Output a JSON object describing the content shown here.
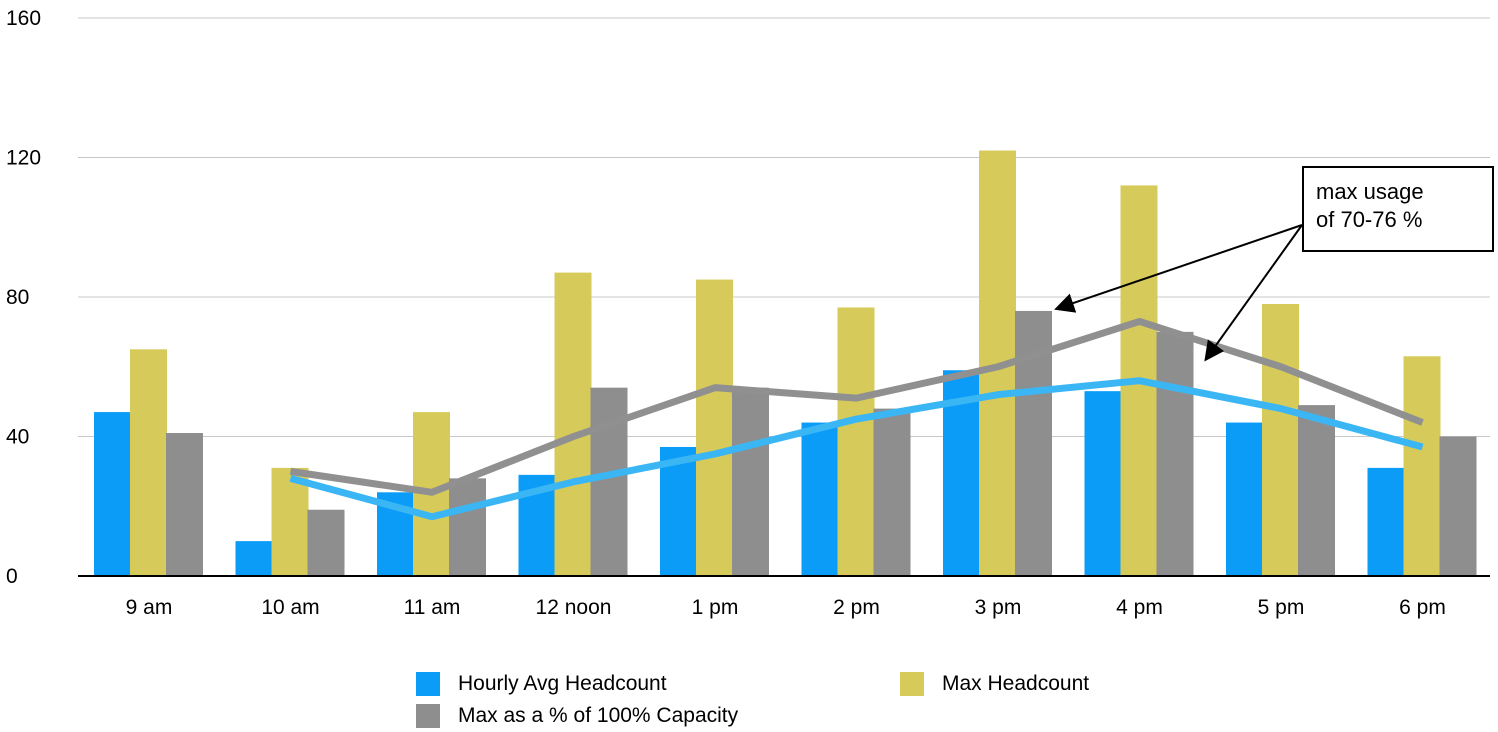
{
  "chart_data": {
    "type": "bar",
    "categories": [
      "9 am",
      "10 am",
      "11 am",
      "12 noon",
      "1 pm",
      "2 pm",
      "3 pm",
      "4 pm",
      "5 pm",
      "6 pm"
    ],
    "ylim": [
      0,
      160
    ],
    "yticks": [
      "0",
      "40",
      "80",
      "120",
      "160"
    ],
    "grid": true,
    "legend_position": "bottom",
    "series": [
      {
        "name": "Hourly Avg Headcount",
        "color": "#0a9cf7",
        "values": [
          47,
          10,
          24,
          29,
          37,
          44,
          59,
          53,
          44,
          31
        ]
      },
      {
        "name": "Max Headcount",
        "color": "#d6cb5a",
        "values": [
          65,
          31,
          47,
          87,
          85,
          77,
          122,
          112,
          78,
          63
        ]
      },
      {
        "name": "Max as a % of 100% Capacity",
        "color": "#8e8e8e",
        "values": [
          41,
          19,
          28,
          54,
          54,
          48,
          76,
          70,
          49,
          40
        ]
      }
    ],
    "trendlines": [
      {
        "of": "Max as a % of 100% Capacity",
        "color": "#909090",
        "points": [
          [
            1,
            30
          ],
          [
            2,
            24
          ],
          [
            3,
            40
          ],
          [
            4,
            54
          ],
          [
            5,
            51
          ],
          [
            6,
            60
          ],
          [
            7,
            73
          ],
          [
            8,
            60
          ],
          [
            9,
            44
          ]
        ]
      },
      {
        "of": "Hourly Avg Headcount",
        "color": "#3bb6f5",
        "points": [
          [
            1,
            28
          ],
          [
            2,
            17
          ],
          [
            3,
            27
          ],
          [
            4,
            35
          ],
          [
            5,
            45
          ],
          [
            6,
            52
          ],
          [
            7,
            56
          ],
          [
            8,
            48
          ],
          [
            9,
            37
          ]
        ]
      }
    ],
    "annotation": {
      "lines": [
        "max usage",
        "of 70-76 %"
      ],
      "arrow_targets": [
        "3 pm",
        "4 pm"
      ]
    }
  }
}
